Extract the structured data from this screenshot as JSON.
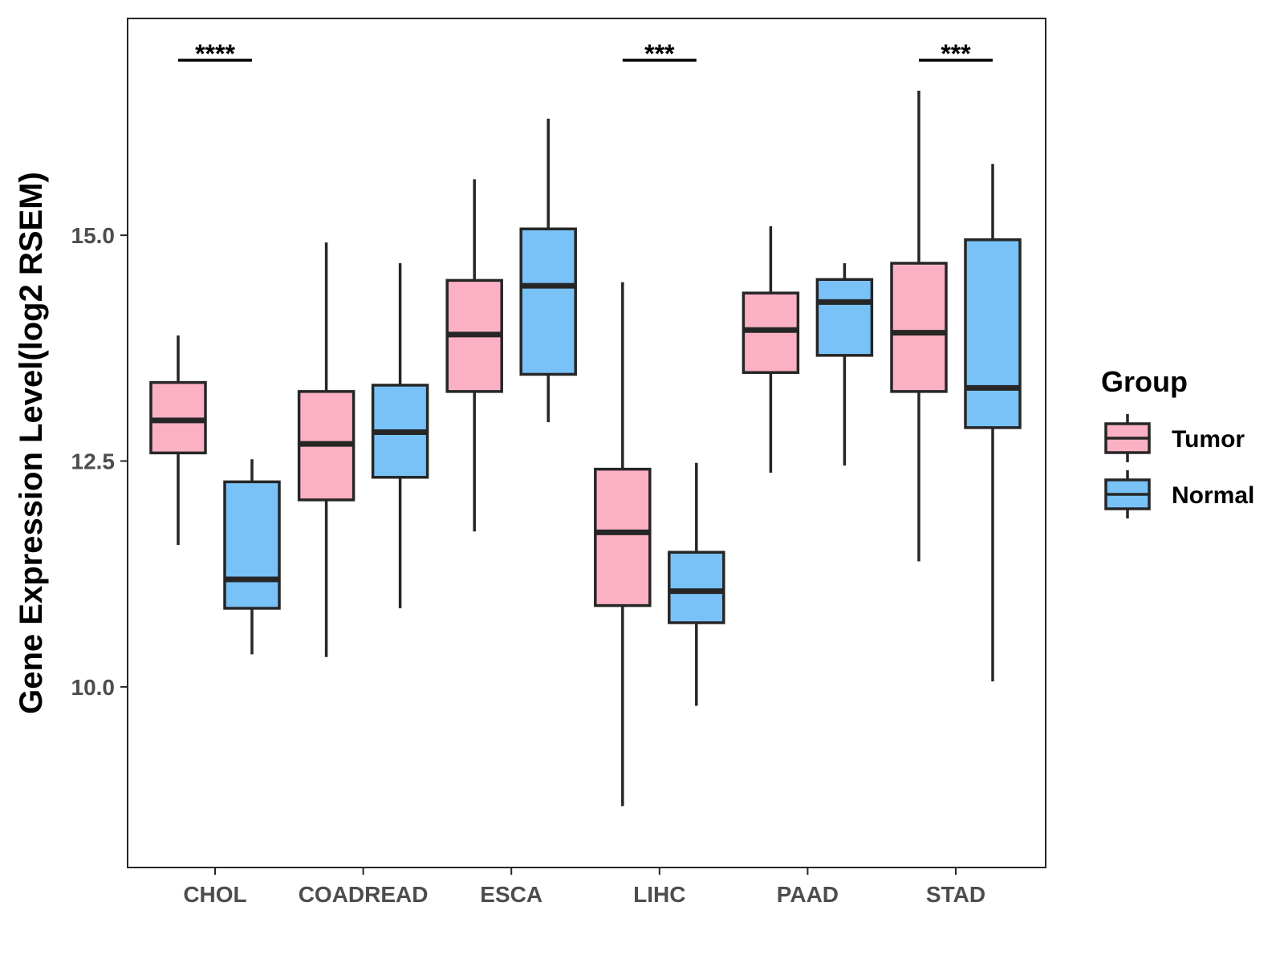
{
  "chart_data": {
    "type": "boxplot",
    "title": "",
    "xlabel": "",
    "ylabel": "Gene Expression Level(log2 RSEM)",
    "ylim": [
      8.0,
      17.4
    ],
    "yticks": [
      10.0,
      12.5,
      15.0
    ],
    "ytick_labels": [
      "10.0",
      "12.5",
      "15.0"
    ],
    "categories": [
      "CHOL",
      "COADREAD",
      "ESCA",
      "LIHC",
      "PAAD",
      "STAD"
    ],
    "legend": {
      "title": "Group",
      "position": "right"
    },
    "colors": {
      "Tumor": "#fbb1c3",
      "Normal": "#78c2f8",
      "outline": "#262626"
    },
    "series": [
      {
        "name": "Tumor",
        "boxes": [
          {
            "category": "CHOL",
            "whisker_low": 11.57,
            "q1": 12.59,
            "median": 12.95,
            "q3": 13.37,
            "whisker_high": 13.89
          },
          {
            "category": "COADREAD",
            "whisker_low": 10.33,
            "q1": 12.07,
            "median": 12.69,
            "q3": 13.27,
            "whisker_high": 14.92
          },
          {
            "category": "ESCA",
            "whisker_low": 11.72,
            "q1": 13.27,
            "median": 13.9,
            "q3": 14.5,
            "whisker_high": 15.62
          },
          {
            "category": "LIHC",
            "whisker_low": 8.68,
            "q1": 10.9,
            "median": 11.71,
            "q3": 12.41,
            "whisker_high": 14.48
          },
          {
            "category": "PAAD",
            "whisker_low": 12.37,
            "q1": 13.48,
            "median": 13.95,
            "q3": 14.36,
            "whisker_high": 15.1
          },
          {
            "category": "STAD",
            "whisker_low": 11.39,
            "q1": 13.27,
            "median": 13.92,
            "q3": 14.69,
            "whisker_high": 16.6
          }
        ]
      },
      {
        "name": "Normal",
        "boxes": [
          {
            "category": "CHOL",
            "whisker_low": 10.36,
            "q1": 10.87,
            "median": 11.19,
            "q3": 12.27,
            "whisker_high": 12.52
          },
          {
            "category": "COADREAD",
            "whisker_low": 10.87,
            "q1": 12.32,
            "median": 12.82,
            "q3": 13.34,
            "whisker_high": 14.69
          },
          {
            "category": "ESCA",
            "whisker_low": 12.93,
            "q1": 13.46,
            "median": 14.44,
            "q3": 15.07,
            "whisker_high": 16.29
          },
          {
            "category": "LIHC",
            "whisker_low": 9.79,
            "q1": 10.71,
            "median": 11.06,
            "q3": 11.49,
            "whisker_high": 12.48
          },
          {
            "category": "PAAD",
            "whisker_low": 12.45,
            "q1": 13.67,
            "median": 14.26,
            "q3": 14.51,
            "whisker_high": 14.69
          },
          {
            "category": "STAD",
            "whisker_low": 10.06,
            "q1": 12.87,
            "median": 13.31,
            "q3": 14.95,
            "whisker_high": 15.79
          }
        ]
      }
    ],
    "annotations": [
      {
        "category": "CHOL",
        "label": "****"
      },
      {
        "category": "LIHC",
        "label": "***"
      },
      {
        "category": "STAD",
        "label": "***"
      }
    ]
  }
}
